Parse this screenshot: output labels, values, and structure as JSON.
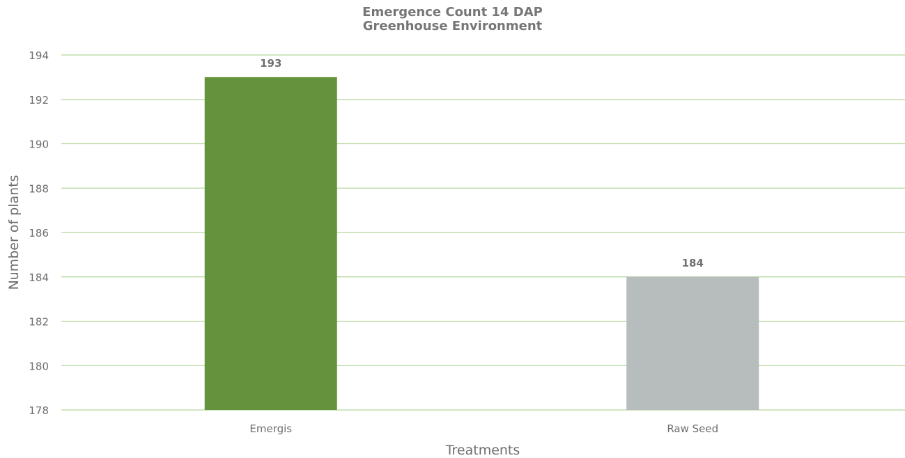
{
  "chart_data": {
    "type": "bar",
    "title": "Emergence Count 14 DAP",
    "subtitle": "Greenhouse Environment",
    "xlabel": "Treatments",
    "ylabel": "Number of plants",
    "categories": [
      "Emergis",
      "Raw Seed"
    ],
    "values": [
      193,
      184
    ],
    "data_labels": [
      "193",
      "184"
    ],
    "ylim": [
      178,
      194
    ],
    "yticks": [
      178,
      180,
      182,
      184,
      186,
      188,
      190,
      192,
      194
    ],
    "grid": true,
    "legend": "none"
  },
  "colors": {
    "bars": [
      "#65933d",
      "#b7bcbc"
    ],
    "gridline": "#b3d69a",
    "axis_text": "#6e6e6e",
    "title_text": "#767676",
    "data_label_text": "#707070"
  }
}
